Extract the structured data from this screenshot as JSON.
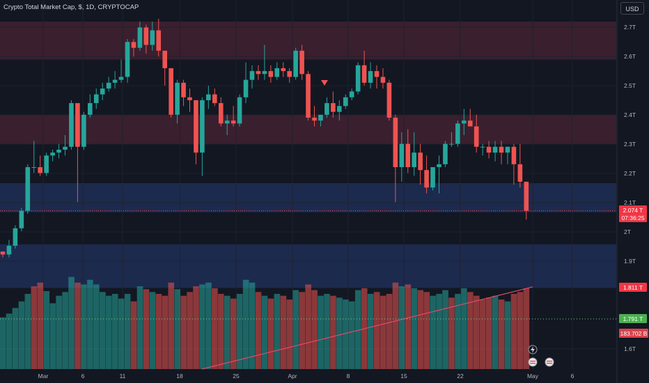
{
  "header": {
    "title": "Crypto Total Market Cap, $, 1D, CRYPTOCAP",
    "currency": "USD"
  },
  "chart_data": {
    "type": "candlestick",
    "title": "Crypto Total Market Cap, $, 1D, CRYPTOCAP",
    "y_unit": "T",
    "y_ticks": [
      "2.7T",
      "2.6T",
      "2.5T",
      "2.4T",
      "2.3T",
      "2.2T",
      "2.1T",
      "2T",
      "1.9T",
      "1.6T"
    ],
    "x_ticks": [
      "Mar",
      "6",
      "11",
      "18",
      "25",
      "Apr",
      "8",
      "15",
      "22",
      "May",
      "6"
    ],
    "zones": [
      {
        "kind": "resistance",
        "from": 2.59,
        "to": 2.72,
        "color": "#3a1f2f"
      },
      {
        "kind": "resistance",
        "from": 2.3,
        "to": 2.4,
        "color": "#3a1f2f"
      },
      {
        "kind": "support",
        "from": 2.065,
        "to": 2.165,
        "color": "#1c2a4e"
      },
      {
        "kind": "support",
        "from": 1.805,
        "to": 1.955,
        "color": "#1c2a4e"
      }
    ],
    "candles": [
      [
        1.93,
        1.93,
        1.91,
        1.92
      ],
      [
        1.92,
        1.97,
        1.91,
        1.95
      ],
      [
        1.95,
        2.02,
        1.94,
        2.01
      ],
      [
        2.01,
        2.08,
        2.0,
        2.07
      ],
      [
        2.07,
        2.23,
        2.06,
        2.22
      ],
      [
        2.22,
        2.31,
        2.2,
        2.22
      ],
      [
        2.22,
        2.26,
        2.19,
        2.2
      ],
      [
        2.2,
        2.27,
        2.19,
        2.26
      ],
      [
        2.26,
        2.28,
        2.24,
        2.27
      ],
      [
        2.27,
        2.3,
        2.25,
        2.28
      ],
      [
        2.28,
        2.33,
        2.26,
        2.29
      ],
      [
        2.29,
        2.45,
        2.28,
        2.44
      ],
      [
        2.44,
        2.44,
        2.1,
        2.29
      ],
      [
        2.29,
        2.41,
        2.28,
        2.4
      ],
      [
        2.4,
        2.47,
        2.39,
        2.44
      ],
      [
        2.44,
        2.49,
        2.42,
        2.47
      ],
      [
        2.47,
        2.51,
        2.45,
        2.49
      ],
      [
        2.49,
        2.53,
        2.48,
        2.51
      ],
      [
        2.51,
        2.55,
        2.49,
        2.52
      ],
      [
        2.52,
        2.59,
        2.51,
        2.53
      ],
      [
        2.53,
        2.66,
        2.51,
        2.65
      ],
      [
        2.65,
        2.66,
        2.6,
        2.63
      ],
      [
        2.63,
        2.72,
        2.62,
        2.7
      ],
      [
        2.7,
        2.71,
        2.61,
        2.64
      ],
      [
        2.64,
        2.72,
        2.62,
        2.69
      ],
      [
        2.69,
        2.73,
        2.6,
        2.62
      ],
      [
        2.62,
        2.62,
        2.5,
        2.56
      ],
      [
        2.56,
        2.56,
        2.39,
        2.4
      ],
      [
        2.4,
        2.52,
        2.37,
        2.51
      ],
      [
        2.51,
        2.52,
        2.43,
        2.46
      ],
      [
        2.46,
        2.49,
        2.41,
        2.45
      ],
      [
        2.45,
        2.45,
        2.23,
        2.27
      ],
      [
        2.27,
        2.46,
        2.19,
        2.45
      ],
      [
        2.45,
        2.5,
        2.42,
        2.47
      ],
      [
        2.47,
        2.49,
        2.43,
        2.44
      ],
      [
        2.44,
        2.46,
        2.36,
        2.37
      ],
      [
        2.37,
        2.4,
        2.33,
        2.38
      ],
      [
        2.38,
        2.43,
        2.36,
        2.37
      ],
      [
        2.37,
        2.47,
        2.36,
        2.46
      ],
      [
        2.46,
        2.58,
        2.44,
        2.52
      ],
      [
        2.52,
        2.57,
        2.49,
        2.55
      ],
      [
        2.55,
        2.57,
        2.52,
        2.54
      ],
      [
        2.54,
        2.64,
        2.52,
        2.55
      ],
      [
        2.55,
        2.57,
        2.51,
        2.53
      ],
      [
        2.53,
        2.58,
        2.52,
        2.56
      ],
      [
        2.56,
        2.58,
        2.53,
        2.55
      ],
      [
        2.55,
        2.56,
        2.51,
        2.53
      ],
      [
        2.53,
        2.63,
        2.52,
        2.62
      ],
      [
        2.62,
        2.64,
        2.52,
        2.54
      ],
      [
        2.54,
        2.55,
        2.38,
        2.39
      ],
      [
        2.39,
        2.43,
        2.36,
        2.38
      ],
      [
        2.38,
        2.4,
        2.36,
        2.4
      ],
      [
        2.4,
        2.46,
        2.39,
        2.44
      ],
      [
        2.44,
        2.48,
        2.39,
        2.41
      ],
      [
        2.41,
        2.45,
        2.38,
        2.43
      ],
      [
        2.43,
        2.47,
        2.42,
        2.46
      ],
      [
        2.46,
        2.49,
        2.45,
        2.48
      ],
      [
        2.48,
        2.58,
        2.47,
        2.57
      ],
      [
        2.57,
        2.62,
        2.5,
        2.51
      ],
      [
        2.51,
        2.58,
        2.49,
        2.55
      ],
      [
        2.55,
        2.57,
        2.49,
        2.53
      ],
      [
        2.53,
        2.56,
        2.49,
        2.51
      ],
      [
        2.51,
        2.52,
        2.38,
        2.39
      ],
      [
        2.39,
        2.4,
        2.1,
        2.22
      ],
      [
        2.22,
        2.34,
        2.17,
        2.3
      ],
      [
        2.3,
        2.35,
        2.2,
        2.22
      ],
      [
        2.22,
        2.34,
        2.19,
        2.27
      ],
      [
        2.27,
        2.3,
        2.16,
        2.21
      ],
      [
        2.21,
        2.26,
        2.13,
        2.15
      ],
      [
        2.15,
        2.22,
        2.14,
        2.22
      ],
      [
        2.22,
        2.26,
        2.13,
        2.23
      ],
      [
        2.23,
        2.31,
        2.22,
        2.3
      ],
      [
        2.3,
        2.34,
        2.29,
        2.3
      ],
      [
        2.3,
        2.38,
        2.29,
        2.37
      ],
      [
        2.37,
        2.42,
        2.33,
        2.38
      ],
      [
        2.38,
        2.42,
        2.36,
        2.36
      ],
      [
        2.36,
        2.4,
        2.27,
        2.29
      ],
      [
        2.29,
        2.3,
        2.26,
        2.29
      ],
      [
        2.29,
        2.31,
        2.25,
        2.27
      ],
      [
        2.27,
        2.31,
        2.24,
        2.29
      ],
      [
        2.29,
        2.31,
        2.23,
        2.27
      ],
      [
        2.27,
        2.29,
        2.23,
        2.29
      ],
      [
        2.29,
        2.3,
        2.16,
        2.23
      ],
      [
        2.23,
        2.3,
        2.15,
        2.17
      ],
      [
        2.17,
        2.17,
        2.04,
        2.07
      ]
    ],
    "volume": [
      {
        "v": 55,
        "up": true
      },
      {
        "v": 59,
        "up": true
      },
      {
        "v": 65,
        "up": true
      },
      {
        "v": 72,
        "up": true
      },
      {
        "v": 80,
        "up": true
      },
      {
        "v": 88,
        "up": false
      },
      {
        "v": 92,
        "up": false
      },
      {
        "v": 83,
        "up": true
      },
      {
        "v": 70,
        "up": true
      },
      {
        "v": 78,
        "up": true
      },
      {
        "v": 82,
        "up": true
      },
      {
        "v": 98,
        "up": true
      },
      {
        "v": 92,
        "up": false
      },
      {
        "v": 90,
        "up": true
      },
      {
        "v": 95,
        "up": true
      },
      {
        "v": 90,
        "up": true
      },
      {
        "v": 82,
        "up": true
      },
      {
        "v": 78,
        "up": true
      },
      {
        "v": 80,
        "up": true
      },
      {
        "v": 75,
        "up": true
      },
      {
        "v": 80,
        "up": true
      },
      {
        "v": 72,
        "up": false
      },
      {
        "v": 88,
        "up": true
      },
      {
        "v": 85,
        "up": false
      },
      {
        "v": 82,
        "up": true
      },
      {
        "v": 80,
        "up": false
      },
      {
        "v": 78,
        "up": false
      },
      {
        "v": 92,
        "up": false
      },
      {
        "v": 85,
        "up": true
      },
      {
        "v": 78,
        "up": false
      },
      {
        "v": 82,
        "up": false
      },
      {
        "v": 88,
        "up": false
      },
      {
        "v": 90,
        "up": true
      },
      {
        "v": 92,
        "up": true
      },
      {
        "v": 86,
        "up": false
      },
      {
        "v": 80,
        "up": false
      },
      {
        "v": 78,
        "up": true
      },
      {
        "v": 75,
        "up": false
      },
      {
        "v": 80,
        "up": true
      },
      {
        "v": 95,
        "up": true
      },
      {
        "v": 92,
        "up": true
      },
      {
        "v": 82,
        "up": false
      },
      {
        "v": 78,
        "up": true
      },
      {
        "v": 75,
        "up": false
      },
      {
        "v": 80,
        "up": true
      },
      {
        "v": 78,
        "up": false
      },
      {
        "v": 74,
        "up": false
      },
      {
        "v": 84,
        "up": true
      },
      {
        "v": 82,
        "up": false
      },
      {
        "v": 90,
        "up": false
      },
      {
        "v": 84,
        "up": false
      },
      {
        "v": 78,
        "up": true
      },
      {
        "v": 80,
        "up": true
      },
      {
        "v": 78,
        "up": false
      },
      {
        "v": 76,
        "up": true
      },
      {
        "v": 74,
        "up": true
      },
      {
        "v": 72,
        "up": true
      },
      {
        "v": 84,
        "up": true
      },
      {
        "v": 86,
        "up": false
      },
      {
        "v": 80,
        "up": true
      },
      {
        "v": 82,
        "up": false
      },
      {
        "v": 78,
        "up": false
      },
      {
        "v": 80,
        "up": false
      },
      {
        "v": 92,
        "up": false
      },
      {
        "v": 88,
        "up": true
      },
      {
        "v": 90,
        "up": false
      },
      {
        "v": 86,
        "up": true
      },
      {
        "v": 84,
        "up": false
      },
      {
        "v": 82,
        "up": false
      },
      {
        "v": 78,
        "up": true
      },
      {
        "v": 80,
        "up": true
      },
      {
        "v": 84,
        "up": true
      },
      {
        "v": 76,
        "up": false
      },
      {
        "v": 80,
        "up": true
      },
      {
        "v": 86,
        "up": true
      },
      {
        "v": 82,
        "up": false
      },
      {
        "v": 78,
        "up": false
      },
      {
        "v": 74,
        "up": false
      },
      {
        "v": 76,
        "up": false
      },
      {
        "v": 78,
        "up": true
      },
      {
        "v": 74,
        "up": false
      },
      {
        "v": 72,
        "up": true
      },
      {
        "v": 80,
        "up": false
      },
      {
        "v": 82,
        "up": false
      },
      {
        "v": 86,
        "up": false
      }
    ],
    "price_labels": {
      "last_price": "2.074 T",
      "countdown": "07:36:25",
      "red_label": "1.811 T",
      "green_label": "1.791 T",
      "volume_label": "183.702 B"
    },
    "grid": true,
    "colors": {
      "up": "#26a69a",
      "down": "#ef5350",
      "background": "#131722",
      "grid": "#1e222d",
      "text": "#b2b5be",
      "trendline": "#e04a6b",
      "dotted_line": "#6fdc8c"
    }
  }
}
